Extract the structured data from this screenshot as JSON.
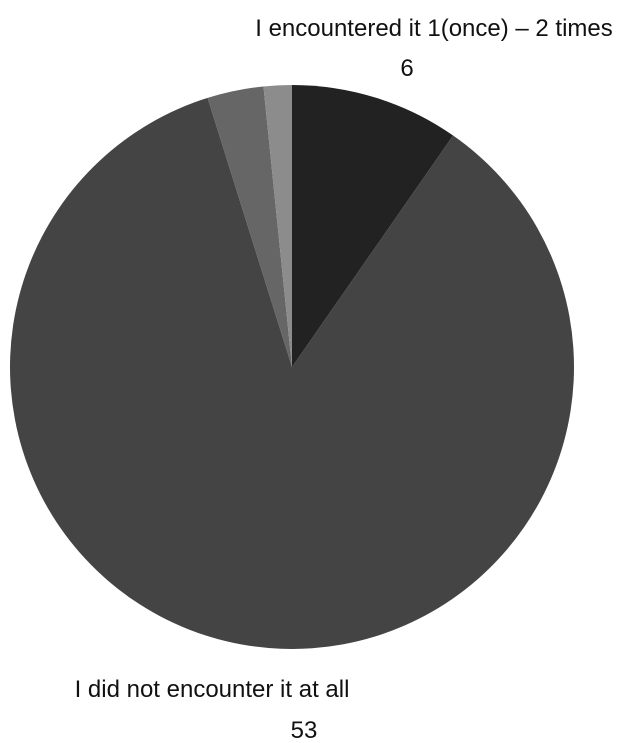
{
  "chart_data": {
    "type": "pie",
    "title": "",
    "slices": [
      {
        "label": "I encountered it 1(once) – 2 times",
        "value": 6,
        "color": "#222222"
      },
      {
        "label": "I did not encounter it at all",
        "value": 53,
        "color": "#444444"
      },
      {
        "label": "",
        "value": 2,
        "color": "#666666"
      },
      {
        "label": "",
        "value": 1,
        "color": "#8c8c8c"
      }
    ],
    "data_labels": [
      {
        "slice": 0,
        "name": "I encountered it 1(once) – 2 times",
        "value": "6"
      },
      {
        "slice": 1,
        "name": "I did not encounter it at all",
        "value": "53"
      }
    ],
    "legend": "none",
    "start": "top",
    "direction": "clockwise"
  }
}
